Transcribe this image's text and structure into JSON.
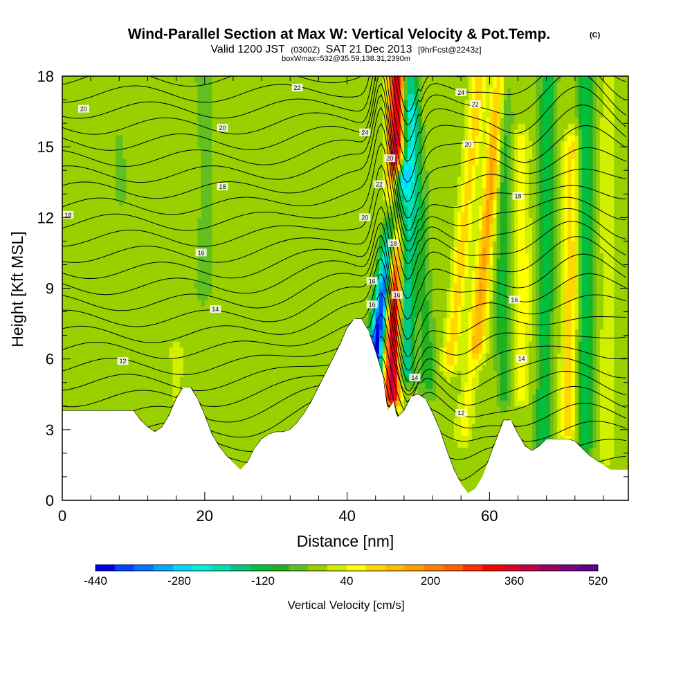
{
  "chart_data": {
    "type": "heatmap",
    "title": "Wind-Parallel Section at Max W: Vertical Velocity & Pot.Temp.",
    "title_mark": "(C)",
    "subtitle": {
      "part1": "Valid 1200 JST",
      "part2": "(0300Z)",
      "part3": "SAT 21 Dec 2013",
      "part4": "[9hrFcst@2243z]"
    },
    "info_line": "boxWmax=532@35.59,138.31,2390m",
    "xlabel": "Distance [nm]",
    "ylabel": "Height [Kft MSL]",
    "xlim": [
      0,
      79.5
    ],
    "ylim": [
      0,
      18
    ],
    "x_ticks": [
      0,
      20,
      40,
      60
    ],
    "y_ticks": [
      0,
      3,
      6,
      9,
      12,
      15,
      18
    ],
    "grid": false,
    "colorbar": {
      "label": "Vertical Velocity [cm/s]",
      "min": -440,
      "max": 520,
      "step": 40,
      "tick_labels": [
        "-440",
        "-280",
        "-120",
        "40",
        "200",
        "360",
        "520"
      ],
      "colors": [
        "#0000f0",
        "#0044ff",
        "#0077ff",
        "#00a8ff",
        "#00d8ff",
        "#00f0e0",
        "#00e0b0",
        "#00c880",
        "#00c040",
        "#20b020",
        "#60c020",
        "#98d000",
        "#d0f000",
        "#ffff00",
        "#ffd800",
        "#ffbc00",
        "#ffa000",
        "#ff8000",
        "#ff6000",
        "#ff3000",
        "#ff0000",
        "#e00028",
        "#c00040",
        "#9c0060",
        "#7a0080",
        "#600090"
      ]
    },
    "terrain_top_kft": [
      [
        0,
        3.8
      ],
      [
        10,
        3.8
      ],
      [
        11,
        3.4
      ],
      [
        12,
        3.1
      ],
      [
        13,
        2.9
      ],
      [
        14,
        3.1
      ],
      [
        15,
        3.6
      ],
      [
        16,
        4.3
      ],
      [
        17,
        4.8
      ],
      [
        18,
        4.8
      ],
      [
        19,
        4.3
      ],
      [
        20,
        3.6
      ],
      [
        21,
        2.8
      ],
      [
        22,
        2.3
      ],
      [
        23,
        1.9
      ],
      [
        24,
        1.6
      ],
      [
        25,
        1.3
      ],
      [
        26,
        1.6
      ],
      [
        27,
        2.2
      ],
      [
        28,
        2.6
      ],
      [
        29,
        2.8
      ],
      [
        30,
        2.9
      ],
      [
        31,
        2.9
      ],
      [
        32,
        3.0
      ],
      [
        33,
        3.3
      ],
      [
        34,
        3.7
      ],
      [
        35,
        4.2
      ],
      [
        36,
        4.8
      ],
      [
        37,
        5.4
      ],
      [
        38,
        6.0
      ],
      [
        39,
        6.6
      ],
      [
        40,
        7.3
      ],
      [
        41,
        7.7
      ],
      [
        42,
        7.7
      ],
      [
        43,
        7.2
      ],
      [
        44,
        6.3
      ],
      [
        45,
        5.3
      ],
      [
        45.7,
        3.8
      ],
      [
        46.5,
        4.2
      ],
      [
        47,
        3.5
      ],
      [
        48,
        3.8
      ],
      [
        49,
        4.4
      ],
      [
        50,
        4.5
      ],
      [
        51,
        4.3
      ],
      [
        52,
        3.7
      ],
      [
        53,
        3.0
      ],
      [
        54,
        2.1
      ],
      [
        55,
        1.3
      ],
      [
        56,
        0.7
      ],
      [
        57,
        0.3
      ],
      [
        58,
        0.5
      ],
      [
        59,
        1.0
      ],
      [
        60,
        1.8
      ],
      [
        61,
        2.6
      ],
      [
        62,
        3.4
      ],
      [
        63,
        3.4
      ],
      [
        64,
        2.8
      ],
      [
        65,
        2.3
      ],
      [
        66,
        2.1
      ],
      [
        67,
        2.3
      ],
      [
        68,
        2.6
      ],
      [
        69,
        2.6
      ],
      [
        70,
        2.6
      ],
      [
        71,
        2.6
      ],
      [
        72,
        2.5
      ],
      [
        73,
        2.2
      ],
      [
        74,
        1.9
      ],
      [
        75,
        1.7
      ],
      [
        76,
        1.5
      ],
      [
        77,
        1.3
      ],
      [
        78,
        1.3
      ],
      [
        79.5,
        1.3
      ]
    ],
    "vertical_velocity_features": [
      {
        "x": 43.5,
        "z0": 5.2,
        "z1": 13.5,
        "lean": 0.45,
        "w": -440
      },
      {
        "x": 46.3,
        "z0": 4.5,
        "z1": 18,
        "lean": 0.05,
        "w": 450
      },
      {
        "x": 48.3,
        "z0": 5.5,
        "z1": 18,
        "lean": 0.05,
        "w": -160
      },
      {
        "x": 51.5,
        "z0": 5.0,
        "z1": 16.5,
        "lean": -0.2,
        "w": -60
      },
      {
        "x": 54.5,
        "z0": 6.0,
        "z1": 18,
        "lean": 0.35,
        "w": 140
      },
      {
        "x": 56.5,
        "z0": 3.0,
        "z1": 18,
        "lean": 0.35,
        "w": 100
      },
      {
        "x": 58.5,
        "z0": 6.5,
        "z1": 18,
        "lean": 0.25,
        "w": 130
      },
      {
        "x": 62.0,
        "z0": 4.5,
        "z1": 18,
        "lean": 0.0,
        "w": -80
      },
      {
        "x": 64.5,
        "z0": 4.5,
        "z1": 15,
        "lean": 0.0,
        "w": 110
      },
      {
        "x": 67.5,
        "z0": 2.5,
        "z1": 18,
        "lean": 0.05,
        "w": -100
      },
      {
        "x": 71.0,
        "z0": 3.0,
        "z1": 15,
        "lean": 0.05,
        "w": 140
      },
      {
        "x": 73.5,
        "z0": 2.5,
        "z1": 18,
        "lean": 0.0,
        "w": -100
      },
      {
        "x": 76.5,
        "z0": 2.0,
        "z1": 18,
        "lean": 0.0,
        "w": 60
      },
      {
        "x": 16.0,
        "z0": 4.6,
        "z1": 6.2,
        "lean": 0.0,
        "w": 60
      },
      {
        "x": 8.0,
        "z0": 13,
        "z1": 18,
        "lean": 0.0,
        "w": 0
      },
      {
        "x": 20.0,
        "z0": 9,
        "z1": 18,
        "lean": 0.0,
        "w": -20
      }
    ],
    "potential_temperature_labels": [
      {
        "x": 3,
        "z": 16.6,
        "text": "20"
      },
      {
        "x": 0.8,
        "z": 12.1,
        "text": "18"
      },
      {
        "x": 22.5,
        "z": 15.8,
        "text": "20"
      },
      {
        "x": 33,
        "z": 17.5,
        "text": "22"
      },
      {
        "x": 22.5,
        "z": 13.3,
        "text": "18"
      },
      {
        "x": 19.5,
        "z": 10.5,
        "text": "16"
      },
      {
        "x": 21.5,
        "z": 8.1,
        "text": "14"
      },
      {
        "x": 8.5,
        "z": 5.9,
        "text": "12"
      },
      {
        "x": 42.5,
        "z": 15.6,
        "text": "24"
      },
      {
        "x": 46,
        "z": 14.5,
        "text": "20"
      },
      {
        "x": 44.5,
        "z": 13.4,
        "text": "22"
      },
      {
        "x": 42.5,
        "z": 12.0,
        "text": "20"
      },
      {
        "x": 46.5,
        "z": 10.9,
        "text": "18"
      },
      {
        "x": 43.5,
        "z": 9.3,
        "text": "16"
      },
      {
        "x": 47,
        "z": 8.7,
        "text": "16"
      },
      {
        "x": 43.5,
        "z": 8.3,
        "text": "16"
      },
      {
        "x": 49.5,
        "z": 5.2,
        "text": "14"
      },
      {
        "x": 56,
        "z": 3.7,
        "text": "12"
      },
      {
        "x": 56,
        "z": 17.3,
        "text": "24"
      },
      {
        "x": 58,
        "z": 16.8,
        "text": "22"
      },
      {
        "x": 57,
        "z": 15.1,
        "text": "20"
      },
      {
        "x": 64,
        "z": 12.9,
        "text": "18"
      },
      {
        "x": 63.5,
        "z": 8.5,
        "text": "16"
      },
      {
        "x": 64.5,
        "z": 6.0,
        "text": "14"
      }
    ]
  }
}
